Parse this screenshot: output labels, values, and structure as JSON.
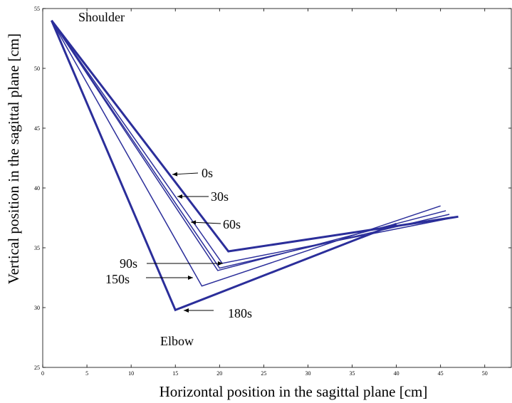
{
  "chart_data": {
    "type": "line",
    "xlabel": "Horizontal position in the sagittal plane [cm]",
    "ylabel": "Vertical position in the sagittal plane [cm]",
    "xlim": [
      0,
      53
    ],
    "ylim": [
      25,
      55
    ],
    "xticks": [
      0,
      5,
      10,
      15,
      20,
      25,
      30,
      35,
      40,
      45,
      50
    ],
    "yticks": [
      25,
      30,
      35,
      40,
      45,
      50,
      55
    ],
    "grid": false,
    "line_color": "#2b2e9a",
    "series": [
      {
        "name": "0s",
        "x": [
          1,
          21,
          47
        ],
        "y": [
          54,
          34.7,
          37.6
        ]
      },
      {
        "name": "30s",
        "x": [
          1,
          20.3,
          47
        ],
        "y": [
          54,
          33.7,
          37.6
        ]
      },
      {
        "name": "60s",
        "x": [
          1,
          20,
          46
        ],
        "y": [
          54,
          33.3,
          37.8
        ]
      },
      {
        "name": "90s",
        "x": [
          1,
          19.8,
          45.6
        ],
        "y": [
          54,
          33.1,
          38.1
        ]
      },
      {
        "name": "150s",
        "x": [
          1,
          18,
          45
        ],
        "y": [
          54,
          31.8,
          38.5
        ]
      },
      {
        "name": "180s",
        "x": [
          1,
          15,
          40
        ],
        "y": [
          54,
          29.8,
          37
        ]
      }
    ],
    "annotations": [
      {
        "text": "Shoulder"
      },
      {
        "text": "Elbow"
      },
      {
        "text": "0s"
      },
      {
        "text": "30s"
      },
      {
        "text": "60s"
      },
      {
        "text": "90s"
      },
      {
        "text": "150s"
      },
      {
        "text": "180s"
      }
    ]
  }
}
